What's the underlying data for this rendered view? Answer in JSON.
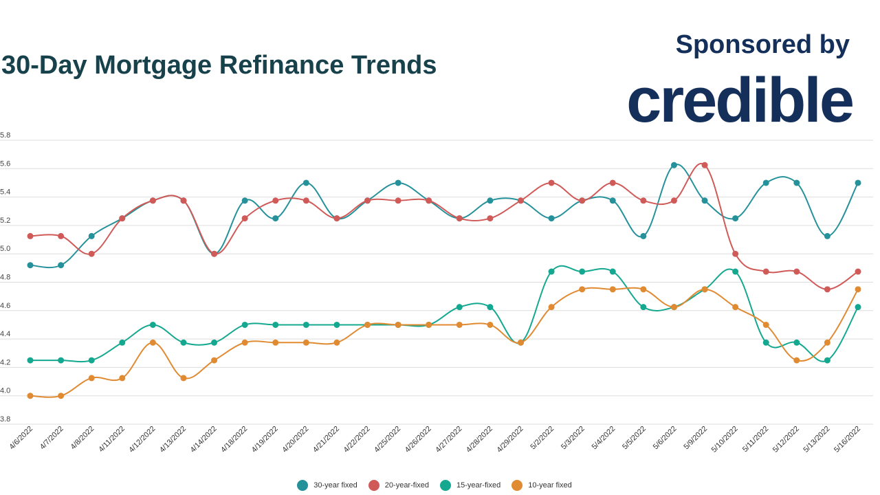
{
  "header": {
    "title": "30-Day Mortgage Refinance Trends",
    "sponsor_label": "Sponsored by",
    "sponsor_brand": "credible"
  },
  "chart_data": {
    "type": "line",
    "title": "30-Day Mortgage Refinance Trends",
    "xlabel": "",
    "ylabel": "",
    "ylim": [
      3.8,
      5.8
    ],
    "yticks": [
      "3.8",
      "4.0",
      "4.2",
      "4.4",
      "4.6",
      "4.8",
      "5.0",
      "5.2",
      "5.4",
      "5.6",
      "5.8"
    ],
    "grid": true,
    "legend": "bottom",
    "categories": [
      "4/6/2022",
      "4/7/2022",
      "4/8/2022",
      "4/11/2022",
      "4/12/2022",
      "4/13/2022",
      "4/14/2022",
      "4/18/2022",
      "4/19/2022",
      "4/20/2022",
      "4/21/2022",
      "4/22/2022",
      "4/25/2022",
      "4/26/2022",
      "4/27/2022",
      "4/28/2022",
      "4/29/2022",
      "5/2/2022",
      "5/3/2022",
      "5/4/2022",
      "5/5/2022",
      "5/6/2022",
      "5/9/2022",
      "5/10/2022",
      "5/11/2022",
      "5/12/2022",
      "5/13/2022",
      "5/16/2022"
    ],
    "series": [
      {
        "name": "30-year fixed",
        "color": "#25919a",
        "values": [
          4.92,
          4.92,
          5.125,
          5.25,
          5.375,
          5.375,
          5.0,
          5.375,
          5.25,
          5.5,
          5.25,
          5.375,
          5.5,
          5.375,
          5.25,
          5.375,
          5.375,
          5.25,
          5.375,
          5.375,
          5.125,
          5.625,
          5.375,
          5.25,
          5.5,
          5.5,
          5.125,
          5.5
        ]
      },
      {
        "name": "20-year-fixed",
        "color": "#d05a58",
        "values": [
          5.125,
          5.125,
          5.0,
          5.25,
          5.375,
          5.375,
          5.0,
          5.25,
          5.375,
          5.375,
          5.25,
          5.375,
          5.375,
          5.375,
          5.25,
          5.25,
          5.375,
          5.5,
          5.375,
          5.5,
          5.375,
          5.375,
          5.625,
          5.0,
          4.875,
          4.875,
          4.75,
          4.875
        ]
      },
      {
        "name": "15-year-fixed",
        "color": "#14a890",
        "values": [
          4.25,
          4.25,
          4.25,
          4.375,
          4.5,
          4.375,
          4.375,
          4.5,
          4.5,
          4.5,
          4.5,
          4.5,
          4.5,
          4.5,
          4.625,
          4.625,
          4.375,
          4.875,
          4.875,
          4.875,
          4.625,
          4.625,
          4.75,
          4.875,
          4.375,
          4.375,
          4.25,
          4.625
        ]
      },
      {
        "name": "10-year fixed",
        "color": "#e08a32",
        "values": [
          4.0,
          4.0,
          4.125,
          4.125,
          4.375,
          4.125,
          4.25,
          4.375,
          4.375,
          4.375,
          4.375,
          4.5,
          4.5,
          4.5,
          4.5,
          4.5,
          4.375,
          4.625,
          4.75,
          4.75,
          4.75,
          4.625,
          4.75,
          4.625,
          4.5,
          4.25,
          4.375,
          4.75
        ]
      }
    ]
  }
}
